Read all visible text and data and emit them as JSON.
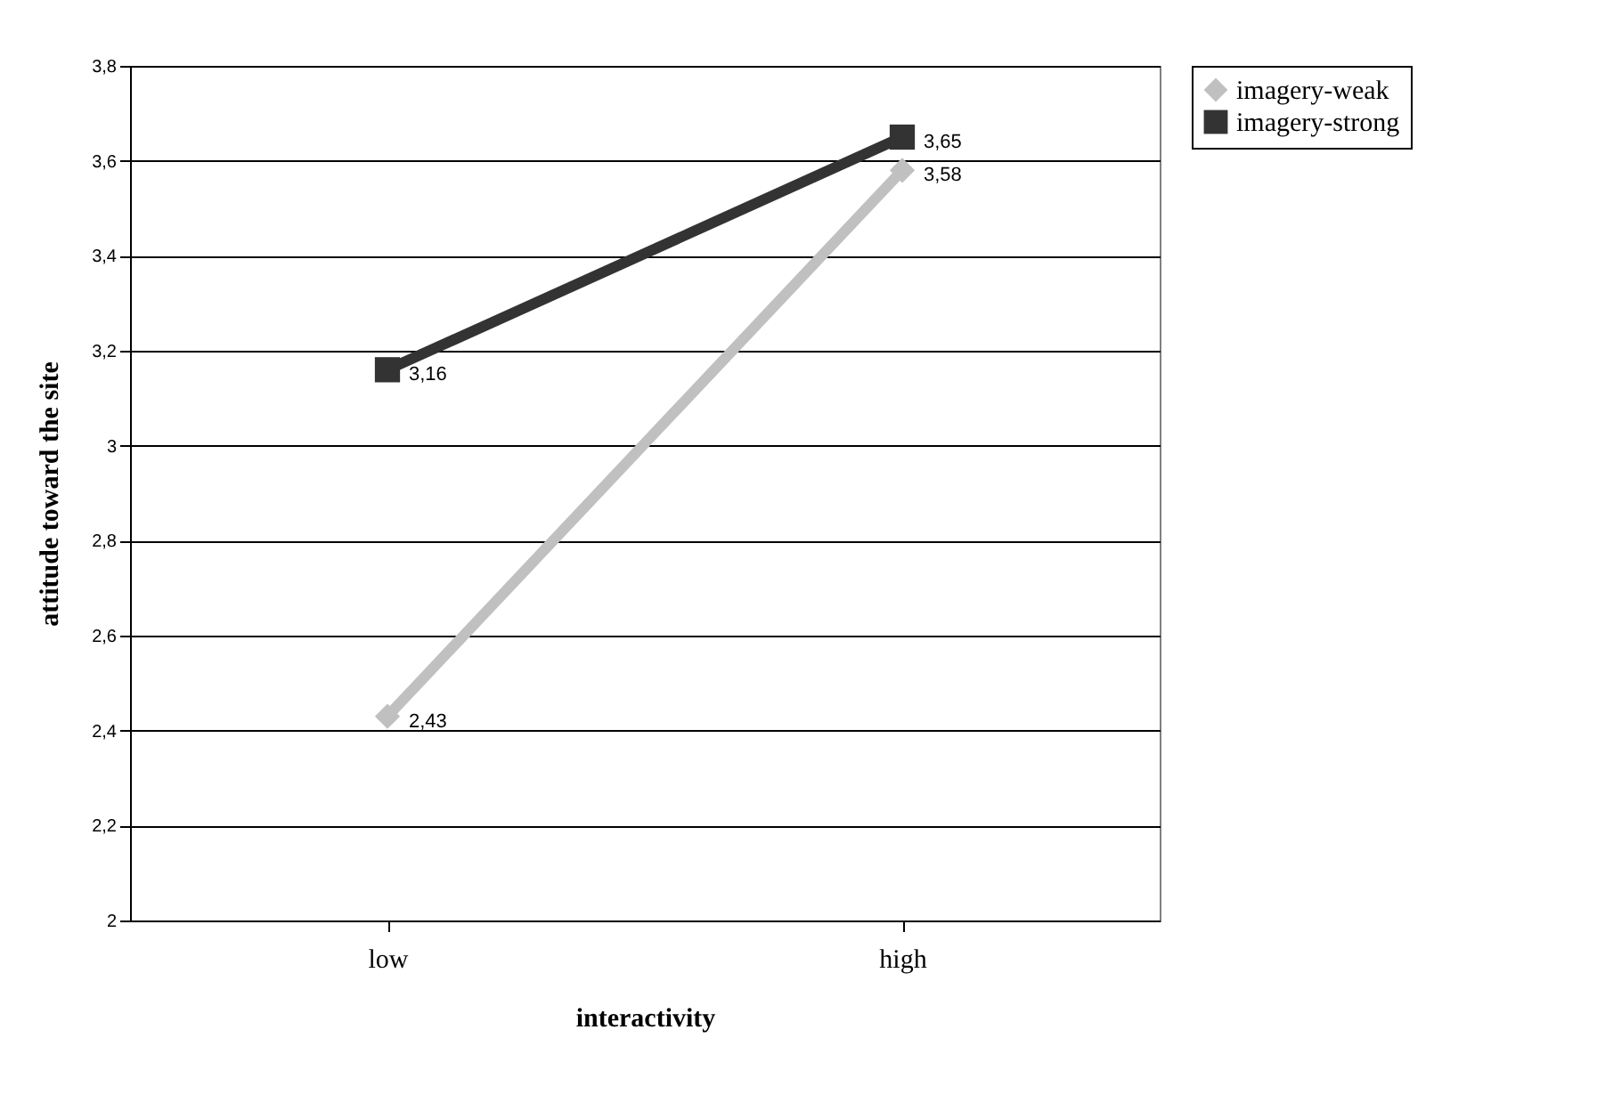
{
  "chart_data": {
    "type": "line",
    "xlabel": "interactivity",
    "ylabel": "attitude toward the site",
    "categories": [
      "low",
      "high"
    ],
    "series": [
      {
        "name": "imagery-weak",
        "color": "#c0c0c0",
        "marker": "diamond",
        "values": [
          2.43,
          3.58
        ],
        "value_labels": [
          "2,43",
          "3,58"
        ]
      },
      {
        "name": "imagery-strong",
        "color": "#333333",
        "marker": "square",
        "values": [
          3.16,
          3.65
        ],
        "value_labels": [
          "3,16",
          "3,65"
        ]
      }
    ],
    "ylim": [
      2,
      3.8
    ],
    "yticks": [
      2,
      {
        "value": 2.2,
        "label": "2,2"
      },
      {
        "value": 2.4,
        "label": "2,4"
      },
      {
        "value": 2.6,
        "label": "2,6"
      },
      {
        "value": 2.8,
        "label": "2,8"
      },
      3,
      {
        "value": 3.2,
        "label": "3,2"
      },
      {
        "value": 3.4,
        "label": "3,4"
      },
      {
        "value": 3.6,
        "label": "3,6"
      },
      {
        "value": 3.8,
        "label": "3,8"
      }
    ],
    "grid": "y",
    "legend": "right",
    "line_style": "solid"
  }
}
